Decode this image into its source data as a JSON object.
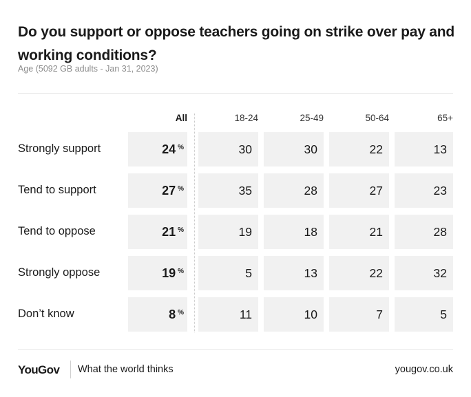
{
  "title": "Do you support or oppose teachers going on strike over pay and working conditions?",
  "subtitle": "Age (5092 GB adults - Jan 31, 2023)",
  "footer": {
    "logo": "YouGov",
    "tagline": "What the world thinks",
    "site": "yougov.co.uk"
  },
  "chart_data": {
    "type": "table",
    "title": "Do you support or oppose teachers going on strike over pay and working conditions?",
    "subtitle": "Age (5092 GB adults - Jan 31, 2023)",
    "columns": [
      "All",
      "18-24",
      "25-49",
      "50-64",
      "65+"
    ],
    "unit": "%",
    "rows": [
      {
        "label": "Strongly support",
        "values": [
          24,
          30,
          30,
          22,
          13
        ]
      },
      {
        "label": "Tend to support",
        "values": [
          27,
          35,
          28,
          27,
          23
        ]
      },
      {
        "label": "Tend to oppose",
        "values": [
          21,
          19,
          18,
          21,
          28
        ]
      },
      {
        "label": "Strongly oppose",
        "values": [
          19,
          5,
          13,
          22,
          32
        ]
      },
      {
        "label": "Don’t know",
        "values": [
          8,
          11,
          10,
          7,
          5
        ]
      }
    ]
  }
}
